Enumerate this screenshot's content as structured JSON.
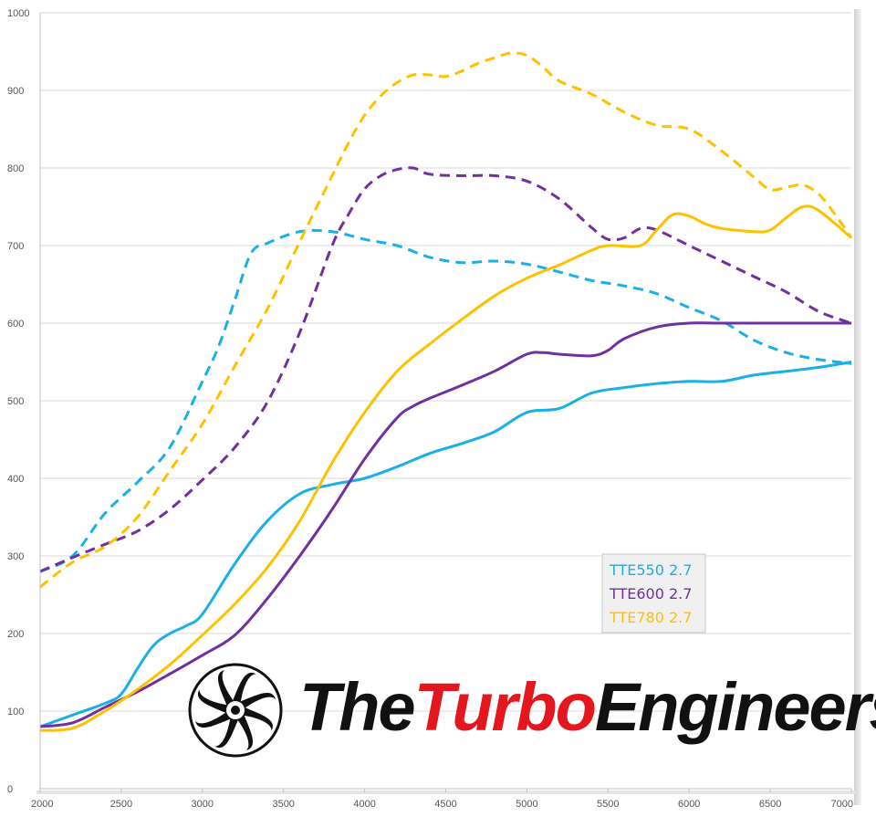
{
  "chart_data": {
    "type": "line",
    "title": "",
    "xlabel": "",
    "ylabel": "",
    "xlim": [
      2000,
      7000
    ],
    "ylim": [
      0,
      1000
    ],
    "x_ticks": [
      "2000",
      "2500",
      "3000",
      "3500",
      "4000",
      "4500",
      "5000",
      "5500",
      "6000",
      "6500",
      "7000"
    ],
    "y_ticks": [
      "0",
      "100",
      "200",
      "300",
      "400",
      "500",
      "600",
      "700",
      "800",
      "900",
      "1000"
    ],
    "grid": "horizontal",
    "legend_position": "bottom-right",
    "series": [
      {
        "name": "TTE550 2.7",
        "style": "solid",
        "color": "#1AAFE6",
        "x": [
          2000,
          2200,
          2400,
          2500,
          2600,
          2700,
          2800,
          2900,
          3000,
          3200,
          3400,
          3600,
          3800,
          4000,
          4200,
          4400,
          4600,
          4800,
          5000,
          5200,
          5400,
          5600,
          5800,
          6000,
          6200,
          6400,
          6600,
          6800,
          7000
        ],
        "y": [
          80,
          95,
          110,
          122,
          155,
          185,
          200,
          210,
          225,
          290,
          345,
          380,
          392,
          400,
          415,
          432,
          445,
          460,
          485,
          490,
          510,
          517,
          522,
          525,
          525,
          533,
          538,
          543,
          550
        ]
      },
      {
        "name": "TTE600 2.7",
        "style": "solid",
        "color": "#7030A0",
        "x": [
          2000,
          2200,
          2400,
          2600,
          2800,
          3000,
          3200,
          3400,
          3600,
          3800,
          4000,
          4200,
          4300,
          4400,
          4600,
          4800,
          5000,
          5100,
          5200,
          5400,
          5500,
          5600,
          5800,
          6000,
          6200,
          6400,
          6600,
          6800,
          7000
        ],
        "y": [
          80,
          85,
          105,
          125,
          148,
          172,
          198,
          245,
          300,
          360,
          425,
          478,
          493,
          503,
          520,
          538,
          560,
          562,
          560,
          558,
          565,
          580,
          595,
          600,
          600,
          600,
          600,
          600,
          600
        ]
      },
      {
        "name": "TTE780 2.7",
        "style": "solid",
        "color": "#FFC000",
        "x": [
          2000,
          2200,
          2400,
          2600,
          2800,
          3000,
          3200,
          3400,
          3600,
          3800,
          4000,
          4200,
          4400,
          4600,
          4800,
          5000,
          5200,
          5400,
          5500,
          5700,
          5800,
          5900,
          6000,
          6100,
          6200,
          6400,
          6500,
          6600,
          6700,
          6800,
          7000
        ],
        "y": [
          75,
          78,
          100,
          128,
          160,
          198,
          238,
          285,
          345,
          420,
          485,
          538,
          573,
          605,
          635,
          658,
          675,
          694,
          700,
          700,
          720,
          740,
          738,
          728,
          722,
          718,
          720,
          736,
          750,
          745,
          710
        ]
      },
      {
        "name": "TTE550 2.7 (dashed)",
        "style": "dashed",
        "color": "#1AAFE6",
        "x": [
          2000,
          2200,
          2400,
          2600,
          2800,
          3000,
          3100,
          3200,
          3300,
          3400,
          3600,
          3800,
          4000,
          4200,
          4400,
          4600,
          4800,
          5000,
          5200,
          5400,
          5600,
          5800,
          6000,
          6200,
          6400,
          6600,
          6800,
          7000
        ],
        "y": [
          280,
          300,
          355,
          395,
          440,
          525,
          570,
          630,
          690,
          703,
          718,
          718,
          708,
          700,
          685,
          678,
          680,
          676,
          666,
          655,
          648,
          638,
          620,
          603,
          578,
          562,
          553,
          548
        ]
      },
      {
        "name": "TTE600 2.7 (dashed)",
        "style": "dashed",
        "color": "#7030A0",
        "x": [
          2000,
          2200,
          2400,
          2600,
          2800,
          3000,
          3200,
          3400,
          3600,
          3800,
          3900,
          4000,
          4100,
          4200,
          4300,
          4400,
          4600,
          4800,
          5000,
          5200,
          5400,
          5500,
          5600,
          5700,
          5800,
          6000,
          6200,
          6400,
          6600,
          6800,
          7000
        ],
        "y": [
          280,
          298,
          315,
          332,
          360,
          398,
          440,
          498,
          588,
          700,
          740,
          773,
          790,
          798,
          800,
          792,
          790,
          790,
          783,
          760,
          723,
          708,
          710,
          722,
          720,
          700,
          680,
          660,
          640,
          615,
          600
        ]
      },
      {
        "name": "TTE780 2.7 (dashed)",
        "style": "dashed",
        "color": "#FFC000",
        "x": [
          2000,
          2200,
          2400,
          2600,
          2800,
          3000,
          3200,
          3400,
          3600,
          3800,
          3900,
          4000,
          4100,
          4200,
          4300,
          4400,
          4500,
          4600,
          4700,
          4800,
          4900,
          5000,
          5100,
          5200,
          5400,
          5600,
          5800,
          6000,
          6200,
          6400,
          6500,
          6600,
          6700,
          6800,
          6900,
          7000
        ],
        "y": [
          260,
          292,
          312,
          350,
          410,
          470,
          545,
          618,
          705,
          790,
          832,
          868,
          893,
          910,
          920,
          920,
          918,
          925,
          935,
          942,
          948,
          945,
          930,
          912,
          895,
          872,
          855,
          850,
          822,
          788,
          772,
          775,
          778,
          766,
          740,
          710
        ]
      }
    ]
  },
  "legend": {
    "items": [
      {
        "label": "TTE550 2.7",
        "color": "#1AAFE6"
      },
      {
        "label": "TTE600 2.7",
        "color": "#7030A0"
      },
      {
        "label": "TTE780 2.7",
        "color": "#FFC000"
      }
    ]
  },
  "brand": {
    "part1": "The",
    "part2": "Turbo",
    "part3": "Engineers",
    "icon": "turbine-logo-icon",
    "colors": {
      "dark": "#111111",
      "accent": "#E4161E"
    }
  }
}
